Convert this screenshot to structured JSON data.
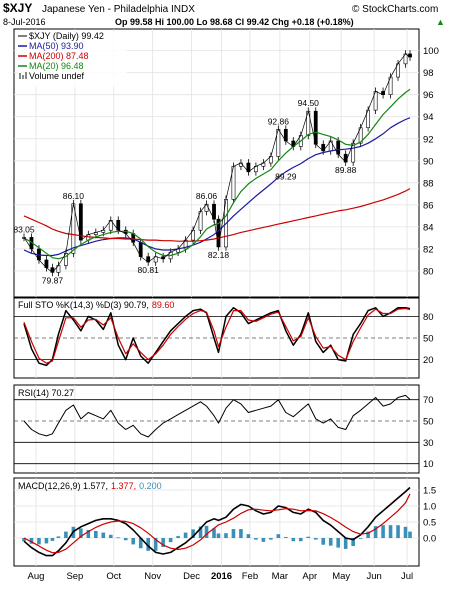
{
  "header": {
    "symbol": "$XJY",
    "name": "Japanese Yen - Philadelphia INDX",
    "watermark": "© StockCharts.com",
    "date": "8-Jul-2016",
    "quote": "Op 99.58  Hi 100.00  Lo 98.68  Cl 99.42  Chg +0.18 (+0.18%)",
    "quote_arrow": "▲"
  },
  "legend": {
    "price": "$XJY (Daily) 99.42",
    "ma50": "MA(50) 93.90",
    "ma200": "MA(200) 87.48",
    "ma20": "MA(20) 96.48",
    "volume": "Volume undef"
  },
  "sto_label": {
    "a": "Full STO %K(14,3) %D(3) 90.79,",
    "b": "89.60"
  },
  "rsi_label": "RSI(14) 70.27",
  "macd_label": {
    "a": "MACD(12,26,9) 1.577,",
    "b": "1.377,",
    "c": "0.200"
  },
  "months": [
    "Aug",
    "Sep",
    "Oct",
    "Nov",
    "Dec",
    "2016",
    "Feb",
    "Mar",
    "Apr",
    "May",
    "Jun",
    "Jul"
  ],
  "colors": {
    "price": "#000000",
    "ma50": "#1a1aa0",
    "ma200": "#cc0000",
    "ma20": "#118811",
    "sto_k": "#000000",
    "sto_d": "#cc0000",
    "macd": "#000000",
    "signal": "#cc0000",
    "hist": "#3a8fb7"
  },
  "chart_data": [
    {
      "type": "line",
      "title": "$XJY (Daily) 99.42",
      "ylim": [
        78,
        101.6
      ],
      "yticks": [
        80,
        82,
        84,
        86,
        88,
        90,
        92,
        94,
        96,
        98,
        100
      ],
      "x": [
        0,
        5,
        10,
        15,
        19,
        23,
        28,
        33,
        38,
        43,
        48,
        53,
        58,
        63,
        68,
        73,
        78,
        83,
        88,
        93,
        98,
        103,
        108,
        113,
        118,
        122,
        127,
        130,
        135,
        140,
        145,
        150,
        155,
        160,
        165,
        170,
        175,
        180,
        185,
        190,
        195,
        200,
        205,
        210,
        215,
        220,
        225,
        230,
        235,
        240,
        245,
        250,
        255,
        258
      ],
      "series": [
        {
          "name": "$XJY",
          "values": [
            83.05,
            82.0,
            81.0,
            80.3,
            79.87,
            80.5,
            81.6,
            86.1,
            82.8,
            83.3,
            83.5,
            83.7,
            84.6,
            83.7,
            83.4,
            82.6,
            81.3,
            80.81,
            81.3,
            81.1,
            81.7,
            82.0,
            82.8,
            83.7,
            85.4,
            86.06,
            84.7,
            82.18,
            86.5,
            89.5,
            89.8,
            89.0,
            89.5,
            89.8,
            90.4,
            92.86,
            91.8,
            91.3,
            92.3,
            94.5,
            91.5,
            90.9,
            91.8,
            90.6,
            89.88,
            91.6,
            93.0,
            94.6,
            96.3,
            96.0,
            97.6,
            98.8,
            99.7,
            99.42
          ]
        },
        {
          "name": "MA(50) 93.90",
          "values": [
            81.9,
            81.6,
            81.45,
            81.4,
            81.4,
            81.5,
            81.8,
            82.1,
            82.3,
            82.5,
            82.7,
            82.85,
            82.95,
            83.0,
            83.0,
            82.9,
            82.6,
            82.25,
            82.0,
            81.9,
            81.9,
            82.0,
            82.15,
            82.35,
            82.6,
            82.9,
            83.3,
            83.65,
            84.3,
            85.0,
            85.6,
            86.2,
            86.8,
            87.35,
            87.9,
            88.5,
            89.0,
            89.4,
            89.75,
            90.2,
            90.55,
            90.75,
            90.9,
            91.0,
            91.05,
            91.15,
            91.3,
            91.6,
            92.0,
            92.45,
            93.0,
            93.4,
            93.75,
            93.9
          ]
        },
        {
          "name": "MA(200) 87.48",
          "values": [
            85.0,
            84.7,
            84.4,
            84.1,
            83.8,
            83.6,
            83.4,
            83.3,
            83.2,
            83.1,
            83.05,
            83.0,
            82.95,
            82.95,
            82.9,
            82.9,
            82.85,
            82.8,
            82.8,
            82.75,
            82.75,
            82.7,
            82.7,
            82.7,
            82.75,
            82.8,
            82.9,
            83.0,
            83.15,
            83.3,
            83.5,
            83.65,
            83.8,
            83.95,
            84.1,
            84.25,
            84.4,
            84.55,
            84.7,
            84.85,
            85.0,
            85.15,
            85.3,
            85.45,
            85.55,
            85.7,
            85.85,
            86.05,
            86.25,
            86.45,
            86.7,
            86.95,
            87.25,
            87.48
          ]
        },
        {
          "name": "MA(20) 96.48",
          "values": [
            83.0,
            82.6,
            82.1,
            81.6,
            81.2,
            81.1,
            81.3,
            81.9,
            82.4,
            82.8,
            83.1,
            83.3,
            83.5,
            83.6,
            83.6,
            83.4,
            82.9,
            82.2,
            81.7,
            81.4,
            81.4,
            81.6,
            81.9,
            82.4,
            83.1,
            83.8,
            84.2,
            84.3,
            85.0,
            86.2,
            87.2,
            87.9,
            88.4,
            88.8,
            89.2,
            90.0,
            90.7,
            91.3,
            91.8,
            92.4,
            92.6,
            92.4,
            92.2,
            91.9,
            91.5,
            91.4,
            91.7,
            92.4,
            93.3,
            94.2,
            94.9,
            95.6,
            96.2,
            96.48
          ]
        }
      ],
      "annotations": [
        {
          "text": "83.05",
          "x": 0,
          "y": 83.05
        },
        {
          "text": "79.87",
          "x": 19,
          "y": 79.87
        },
        {
          "text": "86.10",
          "x": 33,
          "y": 86.1
        },
        {
          "text": "80.81",
          "x": 83,
          "y": 80.81
        },
        {
          "text": "86.06",
          "x": 122,
          "y": 86.06
        },
        {
          "text": "82.18",
          "x": 130,
          "y": 82.18
        },
        {
          "text": "92.86",
          "x": 170,
          "y": 92.86
        },
        {
          "text": "89.29",
          "x": 175,
          "y": 89.29
        },
        {
          "text": "94.50",
          "x": 190,
          "y": 94.5
        },
        {
          "text": "89.88",
          "x": 215,
          "y": 89.88
        }
      ]
    },
    {
      "type": "line",
      "title": "Full STO %K(14,3) %D(3)",
      "ylim": [
        0,
        100
      ],
      "yticks": [
        20,
        50,
        80
      ],
      "x": [
        0,
        5,
        10,
        15,
        19,
        23,
        28,
        33,
        38,
        43,
        48,
        53,
        58,
        63,
        68,
        73,
        78,
        83,
        88,
        93,
        98,
        103,
        108,
        113,
        118,
        122,
        127,
        130,
        135,
        140,
        145,
        150,
        155,
        160,
        165,
        170,
        175,
        180,
        185,
        190,
        195,
        200,
        205,
        210,
        215,
        220,
        225,
        230,
        235,
        240,
        245,
        250,
        255,
        258
      ],
      "series": [
        {
          "name": "%K",
          "values": [
            70,
            35,
            15,
            12,
            20,
            55,
            88,
            75,
            60,
            80,
            75,
            62,
            85,
            40,
            20,
            50,
            25,
            15,
            30,
            45,
            60,
            70,
            80,
            88,
            90,
            85,
            50,
            30,
            80,
            92,
            85,
            70,
            75,
            80,
            85,
            88,
            60,
            40,
            55,
            85,
            45,
            30,
            40,
            20,
            18,
            55,
            70,
            88,
            92,
            80,
            85,
            92,
            92,
            90.79
          ]
        },
        {
          "name": "%D",
          "values": [
            72,
            45,
            22,
            15,
            18,
            45,
            78,
            78,
            65,
            75,
            76,
            68,
            78,
            50,
            28,
            42,
            30,
            20,
            28,
            40,
            55,
            66,
            76,
            84,
            88,
            86,
            60,
            38,
            65,
            88,
            88,
            75,
            73,
            78,
            83,
            86,
            66,
            46,
            52,
            78,
            52,
            36,
            38,
            26,
            20,
            45,
            64,
            82,
            90,
            84,
            84,
            90,
            91,
            89.6
          ]
        }
      ]
    },
    {
      "type": "line",
      "title": "RSI(14)",
      "ylim": [
        5,
        80
      ],
      "yticks": [
        10,
        30,
        50,
        70
      ],
      "x": [
        0,
        5,
        10,
        15,
        19,
        23,
        28,
        33,
        38,
        43,
        48,
        53,
        58,
        63,
        68,
        73,
        78,
        83,
        88,
        93,
        98,
        103,
        108,
        113,
        118,
        122,
        127,
        130,
        135,
        140,
        145,
        150,
        155,
        160,
        165,
        170,
        175,
        180,
        185,
        190,
        195,
        200,
        205,
        210,
        215,
        220,
        225,
        230,
        235,
        240,
        245,
        250,
        255,
        258
      ],
      "series": [
        {
          "name": "RSI(14)",
          "values": [
            50,
            42,
            38,
            36,
            38,
            48,
            60,
            65,
            52,
            58,
            55,
            52,
            60,
            48,
            42,
            46,
            38,
            35,
            42,
            48,
            52,
            56,
            60,
            64,
            68,
            64,
            55,
            48,
            62,
            70,
            66,
            58,
            60,
            62,
            64,
            70,
            58,
            54,
            60,
            66,
            52,
            48,
            52,
            44,
            42,
            55,
            60,
            66,
            72,
            64,
            66,
            72,
            74,
            70.27
          ]
        }
      ]
    },
    {
      "type": "line",
      "title": "MACD(12,26,9)",
      "ylim": [
        -0.75,
        1.75
      ],
      "yticks": [
        0.0,
        0.5,
        1.0,
        1.5
      ],
      "x": [
        0,
        5,
        10,
        15,
        19,
        23,
        28,
        33,
        38,
        43,
        48,
        53,
        58,
        63,
        68,
        73,
        78,
        83,
        88,
        93,
        98,
        103,
        108,
        113,
        118,
        122,
        127,
        130,
        135,
        140,
        145,
        150,
        155,
        160,
        165,
        170,
        175,
        180,
        185,
        190,
        195,
        200,
        205,
        210,
        215,
        220,
        225,
        230,
        235,
        240,
        245,
        250,
        255,
        258
      ],
      "series": [
        {
          "name": "MACD",
          "values": [
            -0.1,
            -0.3,
            -0.45,
            -0.55,
            -0.55,
            -0.4,
            -0.15,
            0.2,
            0.35,
            0.45,
            0.55,
            0.6,
            0.6,
            0.55,
            0.45,
            0.25,
            0.0,
            -0.25,
            -0.45,
            -0.5,
            -0.45,
            -0.3,
            -0.15,
            0.05,
            0.3,
            0.5,
            0.6,
            0.55,
            0.65,
            0.9,
            1.05,
            1.0,
            0.85,
            0.75,
            0.8,
            1.0,
            0.95,
            0.8,
            0.75,
            0.9,
            0.8,
            0.55,
            0.4,
            0.2,
            0.0,
            -0.05,
            0.1,
            0.35,
            0.65,
            0.85,
            1.05,
            1.25,
            1.45,
            1.577
          ]
        },
        {
          "name": "Signal",
          "values": [
            0.0,
            -0.12,
            -0.25,
            -0.38,
            -0.46,
            -0.45,
            -0.35,
            -0.15,
            0.05,
            0.2,
            0.33,
            0.43,
            0.5,
            0.53,
            0.52,
            0.45,
            0.32,
            0.15,
            -0.05,
            -0.22,
            -0.32,
            -0.36,
            -0.32,
            -0.22,
            -0.06,
            0.12,
            0.3,
            0.41,
            0.5,
            0.62,
            0.77,
            0.88,
            0.9,
            0.87,
            0.85,
            0.88,
            0.92,
            0.9,
            0.85,
            0.86,
            0.85,
            0.76,
            0.64,
            0.5,
            0.34,
            0.2,
            0.12,
            0.15,
            0.28,
            0.45,
            0.65,
            0.85,
            1.1,
            1.377
          ]
        },
        {
          "name": "Histogram",
          "values": [
            -0.1,
            -0.18,
            -0.2,
            -0.17,
            -0.09,
            0.05,
            0.2,
            0.35,
            0.3,
            0.25,
            0.22,
            0.17,
            0.1,
            0.02,
            -0.07,
            -0.2,
            -0.32,
            -0.4,
            -0.4,
            -0.28,
            -0.13,
            0.06,
            0.17,
            0.27,
            0.36,
            0.38,
            0.3,
            0.14,
            0.15,
            0.28,
            0.28,
            0.12,
            -0.05,
            -0.12,
            -0.05,
            0.12,
            0.03,
            -0.1,
            -0.1,
            0.04,
            -0.05,
            -0.21,
            -0.24,
            -0.3,
            -0.34,
            -0.25,
            -0.02,
            0.2,
            0.37,
            0.4,
            0.4,
            0.4,
            0.35,
            0.2
          ]
        }
      ]
    }
  ]
}
